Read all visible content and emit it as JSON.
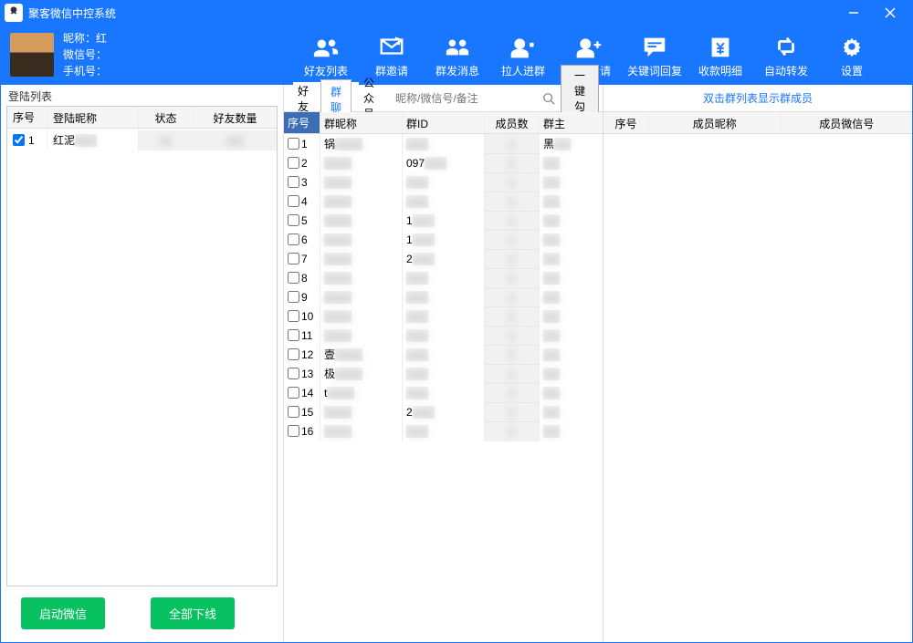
{
  "window": {
    "title": "聚客微信中控系统"
  },
  "user": {
    "nickname_label": "昵称：",
    "nickname_value": "红",
    "wechat_label": "微信号：",
    "wechat_value": "",
    "phone_label": "手机号：",
    "phone_value": ""
  },
  "nav": [
    {
      "id": "friends-list",
      "label": "好友列表",
      "icon": "friends",
      "active": true
    },
    {
      "id": "group-invite",
      "label": "群邀请",
      "icon": "envelope",
      "active": false
    },
    {
      "id": "mass-msg",
      "label": "群发消息",
      "icon": "people",
      "active": false
    },
    {
      "id": "pull-group",
      "label": "拉人进群",
      "icon": "person-add",
      "active": false
    },
    {
      "id": "friend-req",
      "label": "好友申请",
      "icon": "person-plus",
      "active": false
    },
    {
      "id": "keyword-reply",
      "label": "关键词回复",
      "icon": "chat",
      "active": false
    },
    {
      "id": "payment-detail",
      "label": "收款明细",
      "icon": "money",
      "active": false
    },
    {
      "id": "auto-forward",
      "label": "自动转发",
      "icon": "refresh",
      "active": false
    },
    {
      "id": "settings",
      "label": "设置",
      "icon": "gear",
      "active": false
    }
  ],
  "left": {
    "fieldset_label": "登陆列表",
    "columns": {
      "c0": "序号",
      "c1": "登陆昵称",
      "c2": "状态",
      "c3": "好友数量"
    },
    "rows": [
      {
        "idx": "1",
        "name": "红泥",
        "status": "",
        "count": "",
        "checked": true
      }
    ],
    "btn_start": "启动微信",
    "btn_offline": "全部下线"
  },
  "mid": {
    "tabs": [
      {
        "label": "好友",
        "active": false
      },
      {
        "label": "群聊",
        "active": true
      },
      {
        "label": "公众号",
        "active": false
      }
    ],
    "search_placeholder": "昵称/微信号/备注",
    "checkall_label": "一键勾选",
    "columns": {
      "c0": "序号",
      "c1": "群昵称",
      "c2": "群ID",
      "c3": "成员数",
      "c4": "群主"
    },
    "rows": [
      {
        "idx": "1",
        "name": "锅",
        "gid": "",
        "count": "",
        "owner": "黑"
      },
      {
        "idx": "2",
        "name": "",
        "gid": "097",
        "count": "",
        "owner": ""
      },
      {
        "idx": "3",
        "name": "",
        "gid": "",
        "count": "",
        "owner": ""
      },
      {
        "idx": "4",
        "name": "",
        "gid": "",
        "count": "",
        "owner": ""
      },
      {
        "idx": "5",
        "name": "",
        "gid": "1",
        "count": "",
        "owner": ""
      },
      {
        "idx": "6",
        "name": "",
        "gid": "1",
        "count": "",
        "owner": ""
      },
      {
        "idx": "7",
        "name": "",
        "gid": "2",
        "count": "",
        "owner": ""
      },
      {
        "idx": "8",
        "name": "",
        "gid": "",
        "count": "",
        "owner": ""
      },
      {
        "idx": "9",
        "name": "",
        "gid": "",
        "count": "",
        "owner": ""
      },
      {
        "idx": "10",
        "name": "",
        "gid": "",
        "count": "",
        "owner": ""
      },
      {
        "idx": "11",
        "name": "",
        "gid": "",
        "count": "",
        "owner": ""
      },
      {
        "idx": "12",
        "name": "壹",
        "gid": "",
        "count": "1",
        "owner": ""
      },
      {
        "idx": "13",
        "name": "极",
        "gid": "",
        "count": "",
        "owner": ""
      },
      {
        "idx": "14",
        "name": "t",
        "gid": "",
        "count": "1",
        "owner": ""
      },
      {
        "idx": "15",
        "name": "",
        "gid": "2",
        "count": "",
        "owner": ""
      },
      {
        "idx": "16",
        "name": "",
        "gid": "",
        "count": "",
        "owner": ""
      }
    ]
  },
  "right": {
    "hint": "双击群列表显示群成员",
    "columns": {
      "c0": "序号",
      "c1": "成员昵称",
      "c2": "成员微信号"
    }
  },
  "colors": {
    "primary": "#1976ff",
    "green": "#07c160",
    "border": "#dddddd",
    "head_bg": "#f5f5f5"
  }
}
